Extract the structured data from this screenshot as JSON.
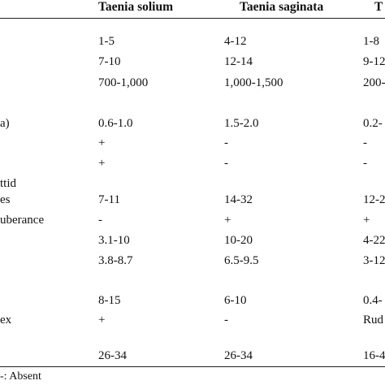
{
  "table": {
    "headers": [
      "Taenia solium",
      "Taenia saginata",
      "T"
    ],
    "rows": [
      {
        "label": "",
        "values": [
          "1-5",
          "4-12",
          "1-8"
        ]
      },
      {
        "label": "",
        "values": [
          "7-10",
          "12-14",
          "9-12"
        ]
      },
      {
        "label": "",
        "values": [
          "700-1,000",
          "1,000-1,500",
          "200-"
        ]
      },
      {
        "label": "a)",
        "values": [
          "0.6-1.0",
          "1.5-2.0",
          "0.2-"
        ]
      },
      {
        "label": "",
        "values": [
          "+",
          "-",
          "-"
        ]
      },
      {
        "label": "",
        "values": [
          "+",
          "-",
          "-"
        ]
      },
      {
        "label": "ttid",
        "values": [
          "",
          "",
          ""
        ]
      },
      {
        "label": "es",
        "values": [
          "7-11",
          "14-32",
          "12-2"
        ]
      },
      {
        "label": "uberance",
        "values": [
          "-",
          "+",
          "+"
        ]
      },
      {
        "label": "",
        "values": [
          "3.1-10",
          "10-20",
          "4-22"
        ]
      },
      {
        "label": "",
        "values": [
          "3.8-8.7",
          "6.5-9.5",
          "3-12"
        ]
      },
      {
        "label": "",
        "values": [
          "8-15",
          "6-10",
          "0.4-"
        ]
      },
      {
        "label": "ex",
        "values": [
          "+",
          "-",
          "Rud"
        ]
      },
      {
        "label": "",
        "values": [
          "26-34",
          "26-34",
          "16-4"
        ]
      }
    ]
  },
  "footer": "-: Absent"
}
